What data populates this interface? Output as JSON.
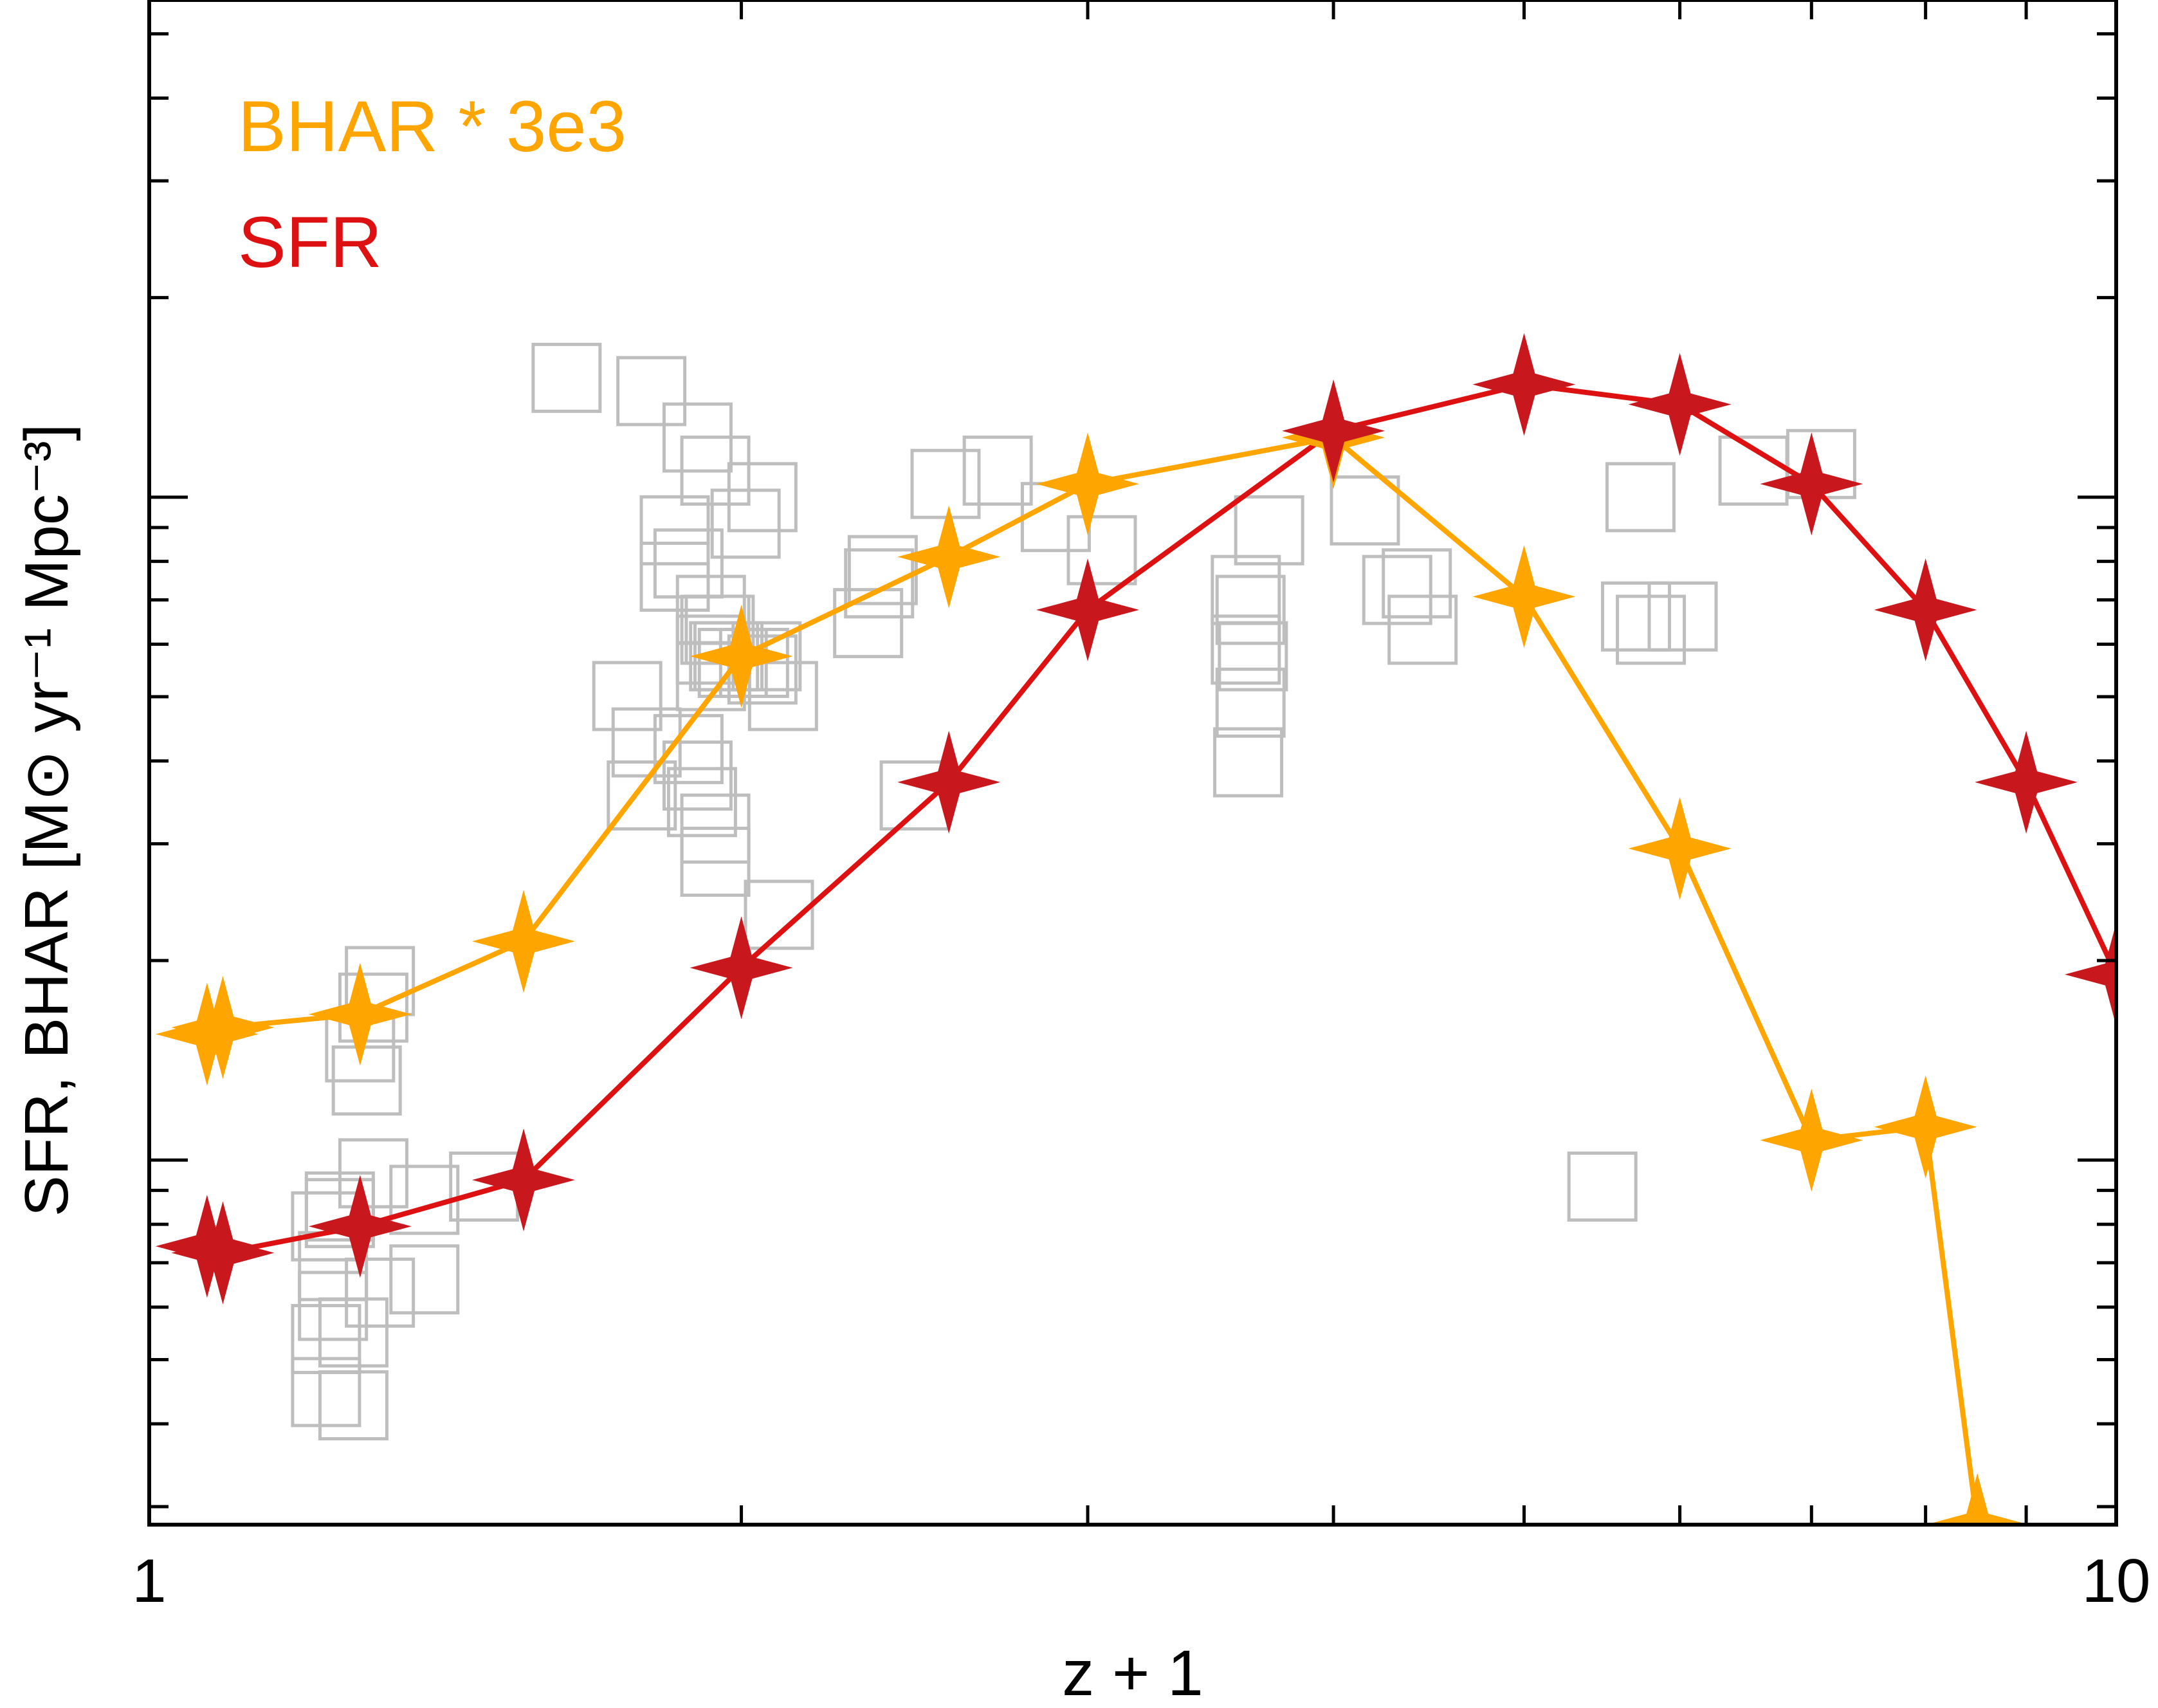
{
  "chart_data": {
    "type": "scatter",
    "title": "",
    "xlabel": "z + 1",
    "ylabel": "SFR, BHAR [M⊙ yr⁻¹ Mpc⁻³]",
    "x_scale": "log",
    "y_scale": "log",
    "xlim": [
      1,
      10
    ],
    "ylim_log10": [
      -2.55,
      -0.25
    ],
    "x_tick_labels": [
      "1",
      "10"
    ],
    "grid": false,
    "legend_placement": "top-left",
    "series": [
      {
        "name": "BHAR * 3e3",
        "color": "#FFA500",
        "marker": "star-4",
        "line": true,
        "x": [
          1.07,
          1.09,
          1.28,
          1.55,
          2.0,
          2.55,
          3.0,
          4.0,
          5.0,
          6.0,
          7.0,
          8.0,
          8.5
        ],
        "log10_y": [
          -1.81,
          -1.8,
          -1.78,
          -1.67,
          -1.24,
          -1.09,
          -0.98,
          -0.91,
          -1.15,
          -1.53,
          -1.97,
          -1.95,
          -2.55
        ]
      },
      {
        "name": "SFR",
        "color": "#DD1111",
        "marker_color": "#C8181E",
        "marker": "star-4",
        "line": true,
        "x": [
          1.07,
          1.09,
          1.28,
          1.55,
          2.0,
          2.55,
          3.0,
          4.0,
          5.0,
          6.0,
          7.0,
          8.0,
          9.0,
          10.0
        ],
        "log10_y": [
          -2.13,
          -2.14,
          -2.1,
          -2.03,
          -1.71,
          -1.43,
          -1.17,
          -0.9,
          -0.83,
          -0.86,
          -0.98,
          -1.17,
          -1.43,
          -1.72
        ]
      },
      {
        "name": "",
        "color": "#BEBEBE",
        "marker": "open-square",
        "line": false,
        "x": [
          1.24,
          1.23,
          1.23,
          1.27,
          1.27,
          1.38,
          1.38,
          1.48,
          1.28,
          1.25,
          1.23,
          1.3,
          1.29,
          1.3,
          1.31,
          1.31,
          1.24,
          1.25,
          1.63,
          1.8,
          1.9,
          1.94,
          2.01,
          2.05,
          1.88,
          1.85,
          1.85,
          1.93,
          1.95,
          1.97,
          1.98,
          1.93,
          2.05,
          2.06,
          2.03,
          1.94,
          1.93,
          1.96,
          2.1,
          1.75,
          1.79,
          1.78,
          1.88,
          1.9,
          1.91,
          1.94,
          1.94,
          2.09,
          2.32,
          2.36,
          2.35,
          2.45,
          2.54,
          2.7,
          2.89,
          3.05,
          3.71,
          3.61,
          3.61,
          3.63,
          3.62,
          4.15,
          4.41,
          4.31,
          4.44,
          3.63,
          3.64,
          5.48,
          5.7,
          5.8,
          6.02,
          6.54,
          7.08,
          5.73
        ],
        "log10_y": [
          -2.22,
          -2.27,
          -2.35,
          -2.37,
          -2.26,
          -2.18,
          -2.06,
          -2.04,
          -1.83,
          -2.07,
          -2.1,
          -2.02,
          -1.88,
          -1.77,
          -1.73,
          -2.2,
          -2.16,
          -2.08,
          -0.82,
          -0.84,
          -0.91,
          -0.96,
          -1.04,
          -1.0,
          -1.1,
          -1.05,
          -1.12,
          -1.17,
          -1.2,
          -1.24,
          -1.25,
          -1.27,
          -1.26,
          -1.24,
          -1.25,
          -1.2,
          -1.23,
          -1.24,
          -1.3,
          -1.3,
          -1.37,
          -1.45,
          -1.38,
          -1.42,
          -1.46,
          -1.5,
          -1.55,
          -1.63,
          -1.19,
          -1.11,
          -1.13,
          -1.45,
          -0.98,
          -0.96,
          -1.03,
          -1.08,
          -1.05,
          -1.14,
          -1.23,
          -1.17,
          -1.4,
          -1.02,
          -1.13,
          -1.14,
          -1.2,
          -1.31,
          -1.24,
          -2.04,
          -1.18,
          -1.2,
          -1.18,
          -0.96,
          -0.95,
          -1.0
        ]
      }
    ]
  }
}
